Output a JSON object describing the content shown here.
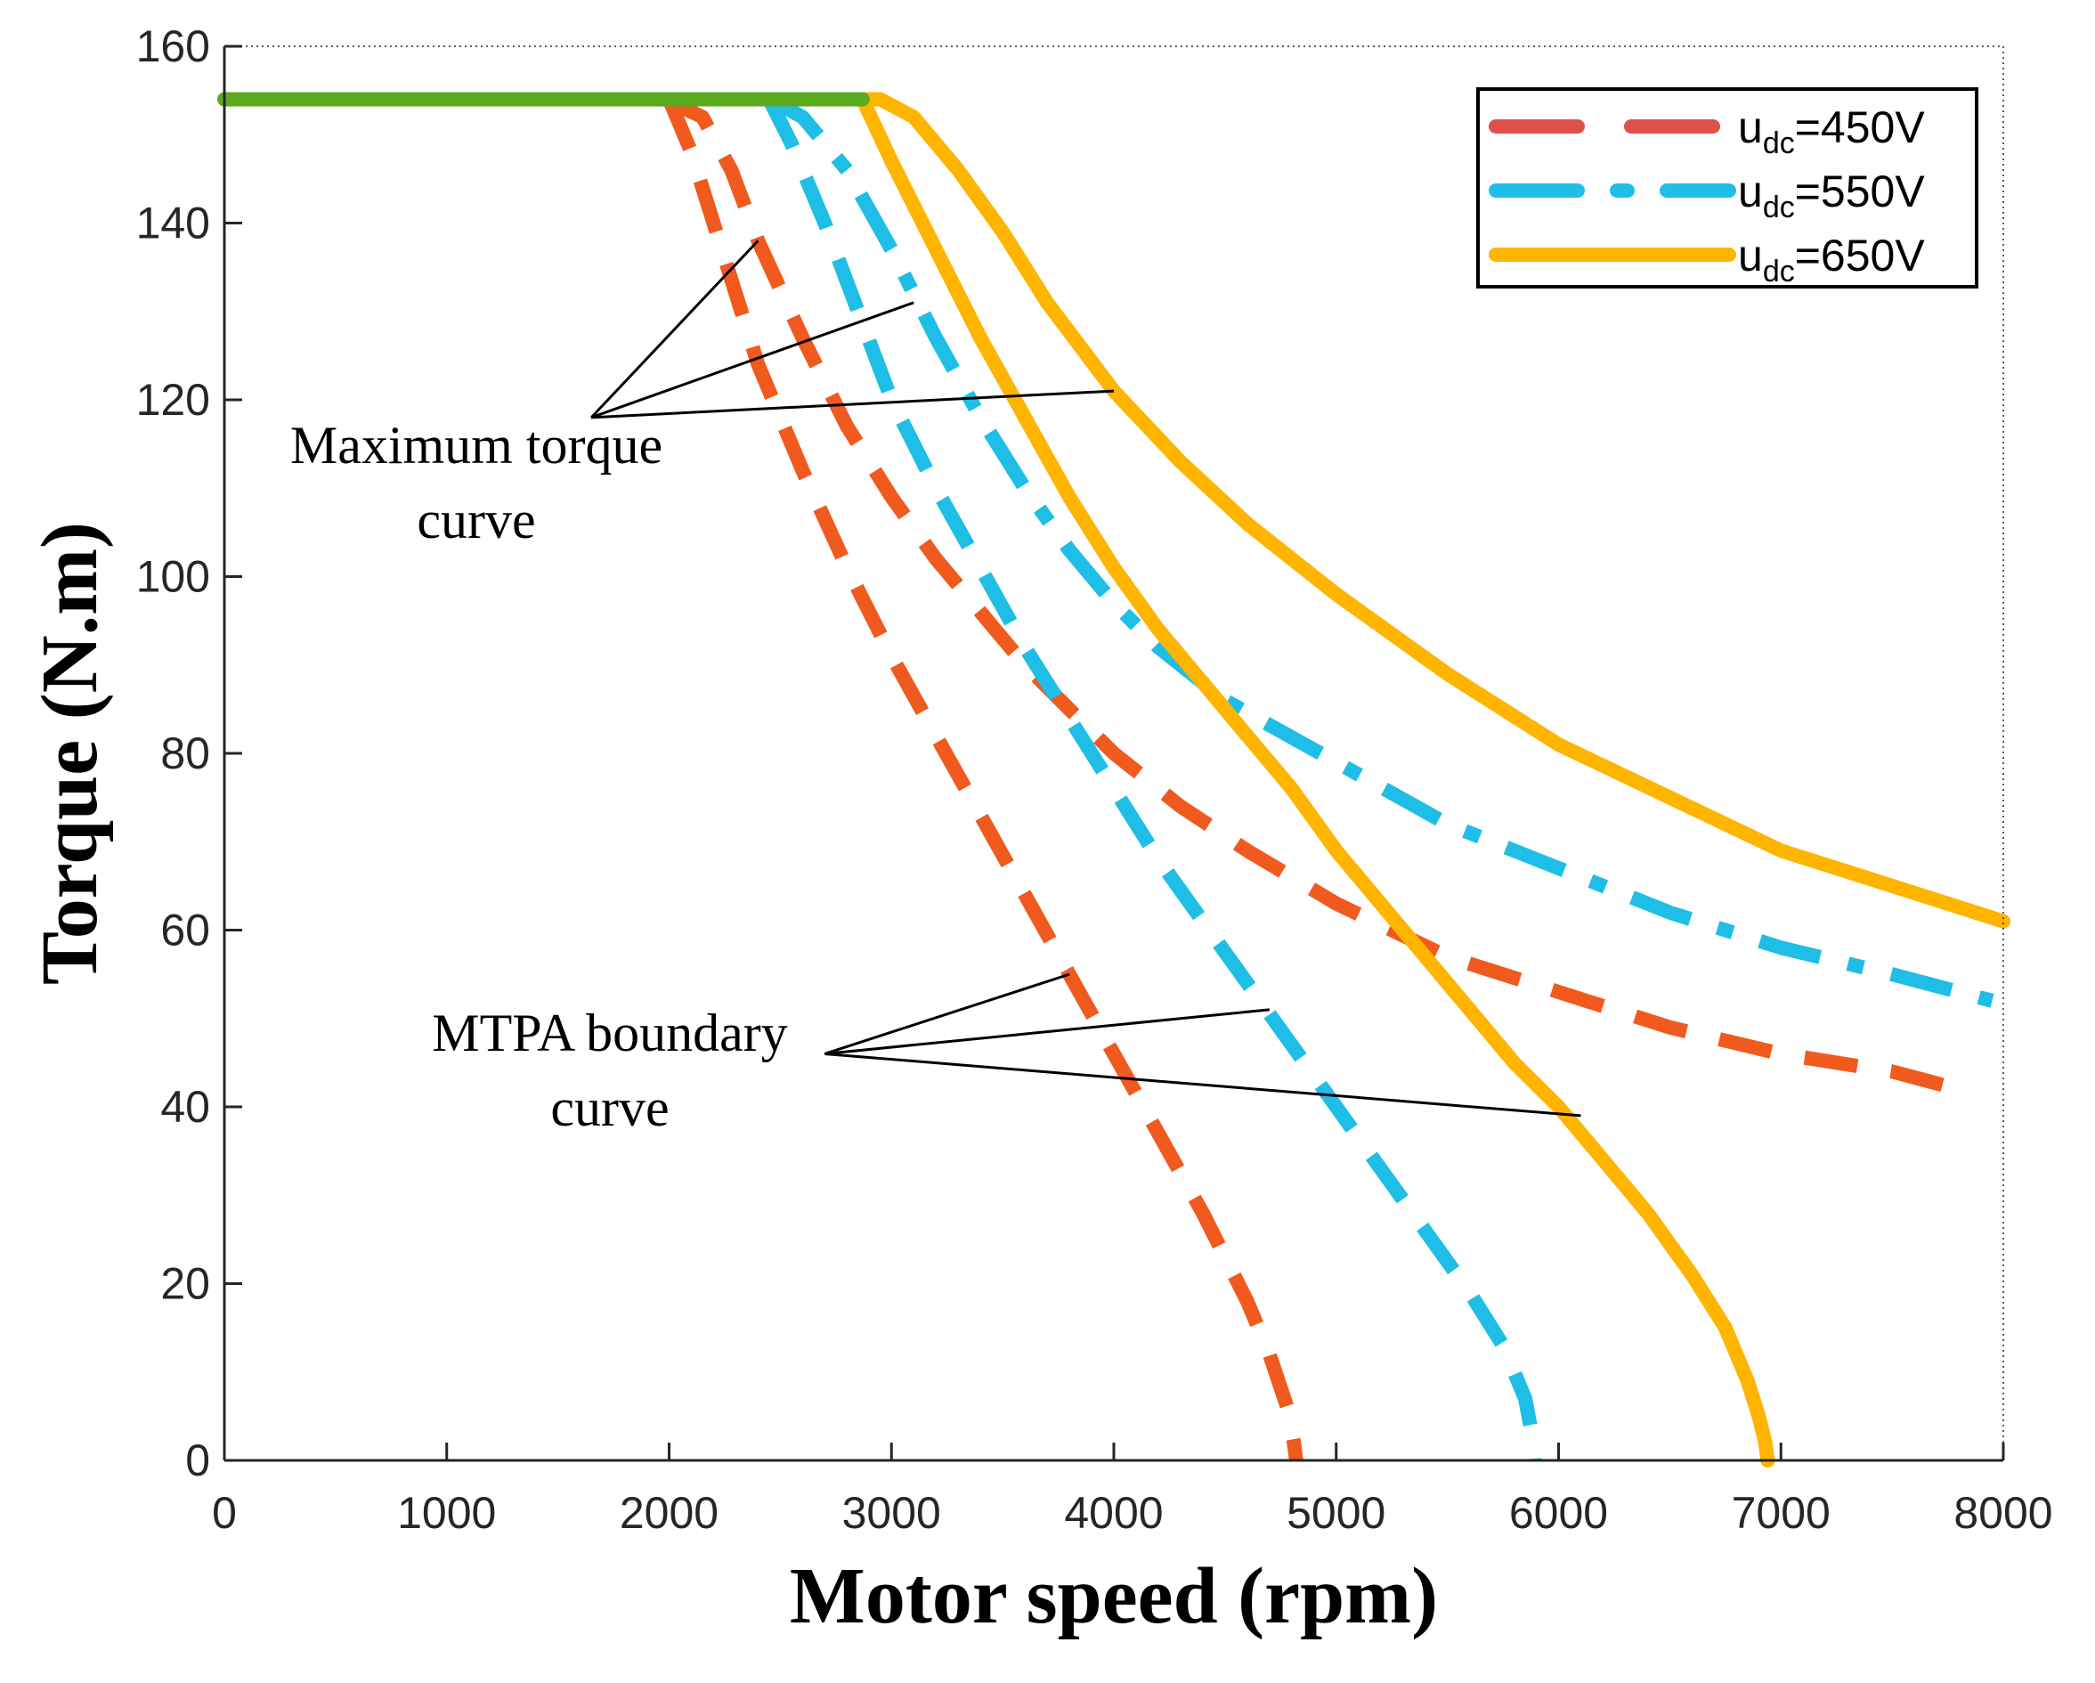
{
  "chart_data": {
    "type": "line",
    "title": "",
    "xlabel": "Motor speed (rpm)",
    "ylabel": "Torque (N.m)",
    "xlim": [
      0,
      8000
    ],
    "ylim": [
      0,
      160
    ],
    "xticks": [
      0,
      1000,
      2000,
      3000,
      4000,
      5000,
      6000,
      7000,
      8000
    ],
    "yticks": [
      0,
      20,
      40,
      60,
      80,
      100,
      120,
      140,
      160
    ],
    "grid": false,
    "legend_position": "top-right",
    "legend": [
      {
        "prefix": "u",
        "sub": "dc",
        "suffix": "=450V"
      },
      {
        "prefix": "u",
        "sub": "dc",
        "suffix": "=550V"
      },
      {
        "prefix": "u",
        "sub": "dc",
        "suffix": "=650V"
      }
    ],
    "annotations": [
      {
        "lines": [
          "Maximum torque",
          "curve"
        ],
        "anchor": [
          1650,
          118
        ],
        "targets": [
          [
            2400,
            138
          ],
          [
            3100,
            131
          ],
          [
            4000,
            121
          ]
        ]
      },
      {
        "lines": [
          "MTPA boundary",
          "curve"
        ],
        "anchor": [
          2700,
          46
        ],
        "targets": [
          [
            3800,
            55
          ],
          [
            4700,
            51
          ],
          [
            6100,
            39
          ]
        ]
      }
    ],
    "series": [
      {
        "name": "u_dc=450V maximum torque curve",
        "group": "450",
        "style": "dashed",
        "color": "#F05A1E",
        "x": [
          1980,
          2150,
          2280,
          2400,
          2600,
          2800,
          3000,
          3200,
          3400,
          3600,
          3800,
          4000,
          4300,
          4600,
          5000,
          5500,
          6000,
          6500,
          7000,
          7500,
          7800
        ],
        "y": [
          154,
          152,
          146,
          138,
          127,
          117,
          109,
          102,
          96,
          90,
          85,
          80,
          74,
          69,
          63,
          57,
          53,
          49,
          46,
          44,
          42
        ]
      },
      {
        "name": "u_dc=450V MTPA boundary curve",
        "group": "450",
        "style": "dashed",
        "color": "#F05A1E",
        "x": [
          2000,
          2100,
          2250,
          2400,
          2600,
          2800,
          3000,
          3200,
          3400,
          3600,
          3800,
          4000,
          4200,
          4400,
          4600,
          4700,
          4780,
          4810,
          4820
        ],
        "y": [
          154,
          148,
          136,
          124,
          112,
          101,
          91,
          82,
          73,
          64,
          55,
          46,
          37,
          28,
          18,
          12,
          6,
          2,
          0
        ]
      },
      {
        "name": "u_dc=550V maximum torque curve",
        "group": "550",
        "style": "dashdot",
        "color": "#1EBEE6",
        "x": [
          2450,
          2600,
          2800,
          3000,
          3200,
          3400,
          3600,
          3800,
          4000,
          4200,
          4500,
          5000,
          5500,
          6000,
          6500,
          7000,
          7500,
          7950
        ],
        "y": [
          154,
          152,
          146,
          137,
          127,
          118,
          110,
          103,
          97,
          92,
          86,
          79,
          72,
          67,
          62,
          58,
          55,
          52
        ]
      },
      {
        "name": "u_dc=550V MTPA boundary curve",
        "group": "550",
        "style": "dashed",
        "color": "#1EBEE6",
        "x": [
          2450,
          2550,
          2700,
          2850,
          3000,
          3200,
          3400,
          3600,
          3800,
          4000,
          4200,
          4400,
          4600,
          4800,
          5000,
          5200,
          5400,
          5600,
          5750,
          5850,
          5880,
          5890
        ],
        "y": [
          154,
          149,
          140,
          130,
          120,
          110,
          101,
          92,
          84,
          76,
          68,
          61,
          54,
          47,
          40,
          33,
          26,
          19,
          13,
          7,
          3,
          0
        ]
      },
      {
        "name": "u_dc=650V maximum torque curve",
        "group": "650",
        "style": "solid",
        "color": "#FFB400",
        "x": [
          2850,
          2950,
          3100,
          3300,
          3500,
          3700,
          4000,
          4300,
          4600,
          5000,
          5500,
          6000,
          6500,
          7000,
          7500,
          8000
        ],
        "y": [
          154,
          154,
          152,
          146,
          139,
          131,
          121,
          113,
          106,
          98,
          89,
          81,
          75,
          69,
          65,
          61
        ]
      },
      {
        "name": "u_dc=650V MTPA boundary curve",
        "group": "650",
        "style": "solid",
        "color": "#FFB400",
        "x": [
          2870,
          3000,
          3200,
          3400,
          3600,
          3800,
          4000,
          4200,
          4400,
          4600,
          4800,
          5000,
          5200,
          5400,
          5600,
          5800,
          6000,
          6200,
          6400,
          6600,
          6750,
          6850,
          6900,
          6930,
          6940
        ],
        "y": [
          154,
          147,
          137,
          127,
          118,
          109,
          101,
          94,
          88,
          82,
          76,
          69,
          63,
          57,
          51,
          45,
          40,
          34,
          28,
          21,
          15,
          9,
          5,
          2,
          0
        ]
      },
      {
        "name": "constant torque region",
        "group": "common",
        "style": "solid",
        "color": "#5AAA1E",
        "x": [
          0,
          2870
        ],
        "y": [
          154,
          154
        ]
      }
    ]
  }
}
